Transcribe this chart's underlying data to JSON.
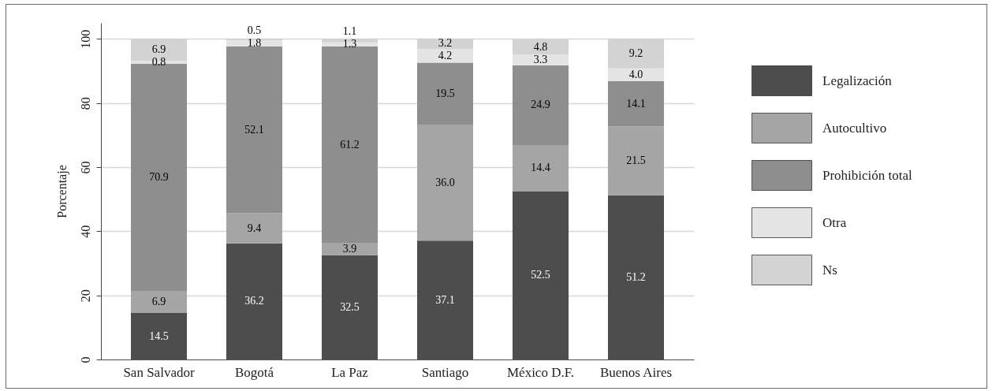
{
  "chart_data": {
    "type": "bar",
    "stacked": true,
    "ylabel": "Porcentaje",
    "categories": [
      "San Salvador",
      "Bogotá",
      "La Paz",
      "Santiago",
      "México D.F.",
      "Buenos Aires"
    ],
    "series": [
      {
        "name": "Legalización",
        "color": "#4d4d4d",
        "values": [
          14.5,
          36.2,
          32.5,
          37.1,
          52.5,
          51.2
        ],
        "value_labels": [
          "14.5",
          "36.2",
          "32.5",
          "37.1",
          "52.5",
          "51.2"
        ]
      },
      {
        "name": "Autocultivo",
        "color": "#a5a5a5",
        "values": [
          6.9,
          9.4,
          3.9,
          36.0,
          14.4,
          21.5
        ],
        "value_labels": [
          "6.9",
          "9.4",
          "3.9",
          "36.0",
          "14.4",
          "21.5"
        ]
      },
      {
        "name": "Prohibición total",
        "color": "#8e8e8e",
        "values": [
          70.9,
          52.1,
          61.2,
          19.5,
          24.9,
          14.1
        ],
        "value_labels": [
          "70.9",
          "52.1",
          "61.2",
          "19.5",
          "24.9",
          "14.1"
        ]
      },
      {
        "name": "Otra",
        "color": "#e4e4e4",
        "values": [
          0.8,
          1.8,
          1.3,
          4.2,
          3.3,
          4.0
        ],
        "value_labels": [
          "0.8",
          "1.8",
          "1.3",
          "4.2",
          "3.3",
          "4.0"
        ]
      },
      {
        "name": "Ns",
        "color": "#d3d3d3",
        "values": [
          6.9,
          0.5,
          1.1,
          3.2,
          4.8,
          9.2
        ],
        "value_labels": [
          "6.9",
          "0.5",
          "1.1",
          "3.2",
          "4.8",
          "9.2"
        ]
      }
    ],
    "ylim": [
      0,
      105
    ],
    "yticks": [
      0,
      20,
      40,
      60,
      80,
      100
    ],
    "grid": "y",
    "legend": "right"
  }
}
